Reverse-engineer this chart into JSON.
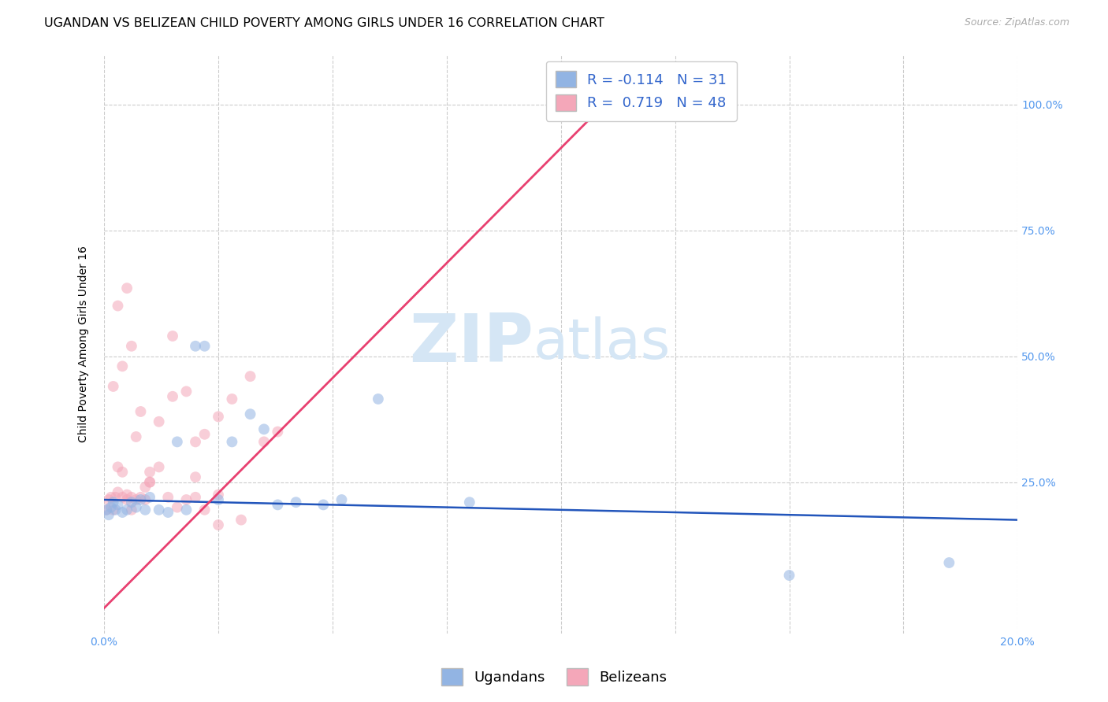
{
  "title": "UGANDAN VS BELIZEAN CHILD POVERTY AMONG GIRLS UNDER 16 CORRELATION CHART",
  "source": "Source: ZipAtlas.com",
  "ylabel": "Child Poverty Among Girls Under 16",
  "ytick_labels": [
    "25.0%",
    "50.0%",
    "75.0%",
    "100.0%"
  ],
  "ytick_values": [
    0.25,
    0.5,
    0.75,
    1.0
  ],
  "xlim": [
    0.0,
    0.2
  ],
  "ylim": [
    -0.05,
    1.1
  ],
  "watermark_zip": "ZIP",
  "watermark_atlas": "atlas",
  "ugandan_color": "#92b4e3",
  "belizean_color": "#f4a7b9",
  "ugandan_line_color": "#2255bb",
  "belizean_line_color": "#e84070",
  "ugandan_R": -0.114,
  "ugandan_N": 31,
  "belizean_R": 0.719,
  "belizean_N": 48,
  "ugandan_x": [
    0.0005,
    0.001,
    0.0015,
    0.002,
    0.0025,
    0.003,
    0.004,
    0.005,
    0.006,
    0.007,
    0.008,
    0.009,
    0.01,
    0.012,
    0.014,
    0.016,
    0.018,
    0.02,
    0.022,
    0.025,
    0.028,
    0.032,
    0.035,
    0.038,
    0.042,
    0.048,
    0.052,
    0.06,
    0.08,
    0.15,
    0.185
  ],
  "ugandan_y": [
    0.195,
    0.185,
    0.2,
    0.21,
    0.195,
    0.205,
    0.19,
    0.195,
    0.21,
    0.2,
    0.215,
    0.195,
    0.22,
    0.195,
    0.19,
    0.33,
    0.195,
    0.52,
    0.52,
    0.215,
    0.33,
    0.385,
    0.355,
    0.205,
    0.21,
    0.205,
    0.215,
    0.415,
    0.21,
    0.065,
    0.09
  ],
  "belizean_x": [
    0.0005,
    0.001,
    0.0015,
    0.002,
    0.0025,
    0.003,
    0.004,
    0.005,
    0.006,
    0.007,
    0.008,
    0.009,
    0.01,
    0.012,
    0.014,
    0.016,
    0.018,
    0.02,
    0.022,
    0.025,
    0.003,
    0.004,
    0.005,
    0.006,
    0.007,
    0.008,
    0.009,
    0.01,
    0.012,
    0.015,
    0.018,
    0.02,
    0.022,
    0.025,
    0.028,
    0.032,
    0.035,
    0.038,
    0.002,
    0.003,
    0.004,
    0.005,
    0.006,
    0.01,
    0.015,
    0.02,
    0.025,
    0.03
  ],
  "belizean_y": [
    0.195,
    0.215,
    0.22,
    0.195,
    0.22,
    0.23,
    0.22,
    0.215,
    0.22,
    0.215,
    0.22,
    0.24,
    0.25,
    0.28,
    0.22,
    0.2,
    0.215,
    0.22,
    0.345,
    0.225,
    0.28,
    0.27,
    0.225,
    0.195,
    0.34,
    0.39,
    0.215,
    0.27,
    0.37,
    0.42,
    0.43,
    0.33,
    0.195,
    0.38,
    0.415,
    0.46,
    0.33,
    0.35,
    0.44,
    0.6,
    0.48,
    0.635,
    0.52,
    0.25,
    0.54,
    0.26,
    0.165,
    0.175
  ],
  "background_color": "#ffffff",
  "grid_color": "#cccccc",
  "title_fontsize": 11.5,
  "axis_label_fontsize": 10,
  "tick_fontsize": 10,
  "legend_fontsize": 13,
  "dot_size": 100,
  "dot_alpha": 0.55,
  "ugandan_line_x": [
    0.0,
    0.2
  ],
  "ugandan_line_y": [
    0.215,
    0.175
  ],
  "belizean_line_x": [
    0.0,
    0.115
  ],
  "belizean_line_y": [
    0.0,
    1.05
  ]
}
